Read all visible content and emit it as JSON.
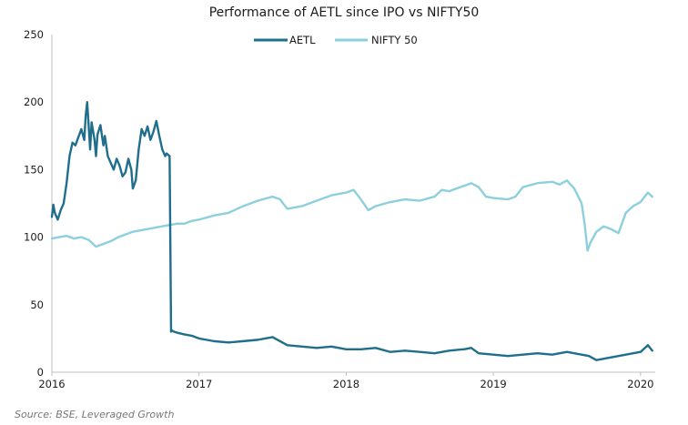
{
  "chart_data": {
    "type": "line",
    "title": "Performance of AETL since IPO vs NIFTY50",
    "source": "Source: BSE, Leveraged Growth",
    "ylim": [
      0,
      250
    ],
    "yticks": [
      0,
      50,
      100,
      150,
      200,
      250
    ],
    "xlim": [
      2016.0,
      2020.1
    ],
    "xticks": [
      {
        "value": 2016,
        "label": "2016"
      },
      {
        "value": 2017,
        "label": "2017"
      },
      {
        "value": 2018,
        "label": "2018"
      },
      {
        "value": 2019,
        "label": "2019"
      },
      {
        "value": 2020,
        "label": "2020"
      }
    ],
    "grid": false,
    "legend_position": "top-center",
    "series": [
      {
        "name": "AETL",
        "color": "#1f6e8c",
        "x": [
          2016.0,
          2016.01,
          2016.02,
          2016.04,
          2016.06,
          2016.08,
          2016.1,
          2016.12,
          2016.14,
          2016.16,
          2016.18,
          2016.2,
          2016.22,
          2016.23,
          2016.24,
          2016.26,
          2016.27,
          2016.29,
          2016.3,
          2016.31,
          2016.33,
          2016.35,
          2016.36,
          2016.38,
          2016.4,
          2016.42,
          2016.44,
          2016.46,
          2016.48,
          2016.5,
          2016.52,
          2016.54,
          2016.55,
          2016.57,
          2016.59,
          2016.61,
          2016.63,
          2016.65,
          2016.67,
          2016.69,
          2016.71,
          2016.73,
          2016.75,
          2016.77,
          2016.78,
          2016.8,
          2016.81,
          2016.815,
          2016.83,
          2016.86,
          2016.9,
          2016.95,
          2017.0,
          2017.05,
          2017.1,
          2017.2,
          2017.3,
          2017.4,
          2017.5,
          2017.6,
          2017.7,
          2017.8,
          2017.9,
          2018.0,
          2018.1,
          2018.2,
          2018.3,
          2018.4,
          2018.5,
          2018.6,
          2018.7,
          2018.8,
          2018.85,
          2018.9,
          2019.0,
          2019.1,
          2019.2,
          2019.3,
          2019.4,
          2019.5,
          2019.55,
          2019.6,
          2019.65,
          2019.7,
          2019.8,
          2019.9,
          2019.95,
          2020.0,
          2020.05,
          2020.08
        ],
        "values": [
          115,
          124,
          118,
          113,
          120,
          125,
          140,
          160,
          170,
          168,
          174,
          180,
          172,
          190,
          200,
          165,
          185,
          172,
          160,
          176,
          183,
          168,
          175,
          160,
          155,
          150,
          158,
          153,
          145,
          148,
          158,
          150,
          136,
          142,
          165,
          180,
          175,
          182,
          172,
          178,
          186,
          175,
          165,
          160,
          162,
          160,
          30,
          31,
          30,
          29,
          28,
          27,
          25,
          24,
          23,
          22,
          23,
          24,
          26,
          20,
          19,
          18,
          19,
          17,
          17,
          18,
          15,
          16,
          15,
          14,
          16,
          17,
          18,
          14,
          13,
          12,
          13,
          14,
          13,
          15,
          14,
          13,
          12,
          9,
          11,
          13,
          14,
          15,
          20,
          16
        ]
      },
      {
        "name": "NIFTY 50",
        "color": "#8ccfdd",
        "x": [
          2016.0,
          2016.05,
          2016.1,
          2016.15,
          2016.2,
          2016.25,
          2016.3,
          2016.35,
          2016.4,
          2016.45,
          2016.5,
          2016.55,
          2016.6,
          2016.65,
          2016.7,
          2016.75,
          2016.8,
          2016.85,
          2016.9,
          2016.95,
          2017.0,
          2017.1,
          2017.2,
          2017.3,
          2017.4,
          2017.5,
          2017.55,
          2017.6,
          2017.7,
          2017.8,
          2017.9,
          2018.0,
          2018.05,
          2018.1,
          2018.15,
          2018.2,
          2018.3,
          2018.4,
          2018.5,
          2018.6,
          2018.65,
          2018.7,
          2018.75,
          2018.8,
          2018.85,
          2018.9,
          2018.95,
          2019.0,
          2019.1,
          2019.15,
          2019.2,
          2019.3,
          2019.4,
          2019.45,
          2019.5,
          2019.55,
          2019.6,
          2019.62,
          2019.64,
          2019.66,
          2019.7,
          2019.75,
          2019.8,
          2019.85,
          2019.9,
          2019.95,
          2020.0,
          2020.05,
          2020.08
        ],
        "values": [
          99,
          100,
          101,
          99,
          100,
          98,
          93,
          95,
          97,
          100,
          102,
          104,
          105,
          106,
          107,
          108,
          109,
          110,
          110,
          112,
          113,
          116,
          118,
          123,
          127,
          130,
          128,
          121,
          123,
          127,
          131,
          133,
          135,
          128,
          120,
          123,
          126,
          128,
          127,
          130,
          135,
          134,
          136,
          138,
          140,
          137,
          130,
          129,
          128,
          130,
          137,
          140,
          141,
          139,
          142,
          136,
          125,
          110,
          90,
          96,
          104,
          108,
          106,
          103,
          118,
          123,
          126,
          133,
          130
        ]
      }
    ]
  }
}
